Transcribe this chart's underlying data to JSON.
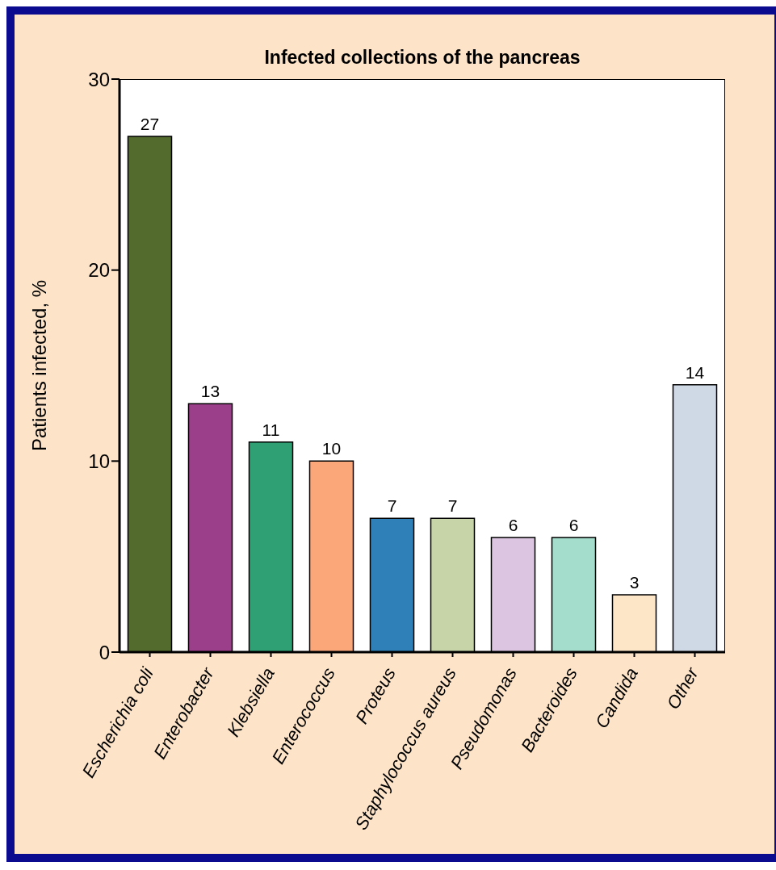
{
  "chart_data": {
    "type": "bar",
    "title": "Infected collections of the pancreas",
    "ylabel": "Patients infected, %",
    "categories": [
      "Escherichia coli",
      "Enterobacter",
      "Klebsiella",
      "Enterococcus",
      "Proteus",
      "Staphylococcus aureus",
      "Pseudomonas",
      "Bacteroides",
      "Candida",
      "Other"
    ],
    "values": [
      27,
      13,
      11,
      10,
      7,
      7,
      6,
      6,
      3,
      14
    ],
    "colors": [
      "#536b2c",
      "#9c3f8b",
      "#2f9f74",
      "#fca77a",
      "#2f7fb9",
      "#c7d4a7",
      "#dcc5e1",
      "#a5ddcd",
      "#fde6c8",
      "#cfd9e5"
    ],
    "ylim": [
      0,
      30
    ],
    "yticks": [
      0,
      10,
      20,
      30
    ],
    "grid": false,
    "legend": false,
    "data_labels": true
  }
}
